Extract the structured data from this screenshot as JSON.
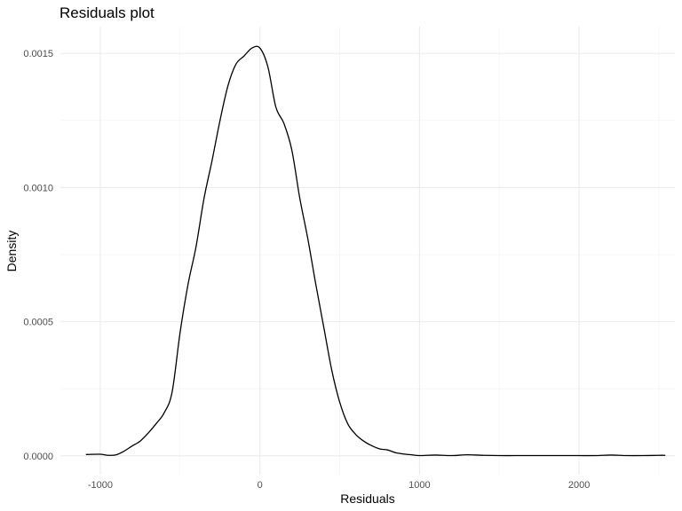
{
  "chart_data": {
    "type": "line",
    "title": "Residuals plot",
    "xlabel": "Residuals",
    "ylabel": "Density",
    "xlim": [
      -1250,
      2600
    ],
    "ylim": [
      -7e-05,
      0.0016
    ],
    "x_ticks": [
      -1000,
      0,
      1000,
      2000
    ],
    "x_tick_labels": [
      "-1000",
      "0",
      "1000",
      "2000"
    ],
    "y_ticks": [
      0.0,
      0.0005,
      0.001,
      0.0015
    ],
    "y_tick_labels": [
      "0.0000",
      "0.0005",
      "0.0010",
      "0.0015"
    ],
    "x_minor_ticks": [
      -500,
      500,
      1500,
      2500
    ],
    "y_minor_ticks": [
      0.00025,
      0.00075,
      0.00125
    ],
    "grid": true,
    "legend": "none",
    "series": [
      {
        "color": "#000000",
        "x": [
          -1090,
          -1000,
          -950,
          -900,
          -850,
          -800,
          -750,
          -700,
          -650,
          -600,
          -550,
          -500,
          -450,
          -400,
          -350,
          -300,
          -250,
          -200,
          -150,
          -100,
          -50,
          0,
          50,
          100,
          150,
          200,
          250,
          300,
          350,
          400,
          450,
          500,
          550,
          600,
          650,
          700,
          750,
          800,
          850,
          900,
          950,
          1000,
          1100,
          1200,
          1300,
          1400,
          1500,
          1600,
          1700,
          1800,
          1900,
          2000,
          2100,
          2200,
          2300,
          2400,
          2500,
          2540
        ],
        "y": [
          5e-06,
          6e-06,
          2e-06,
          4e-06,
          1.8e-05,
          3.7e-05,
          5.5e-05,
          8.5e-05,
          0.00012,
          0.00016,
          0.000238,
          0.00046,
          0.00064,
          0.00078,
          0.00096,
          0.0011,
          0.00125,
          0.00138,
          0.00146,
          0.00149,
          0.00152,
          0.00152,
          0.00145,
          0.0013,
          0.00124,
          0.00114,
          0.00096,
          0.00081,
          0.00064,
          0.00048,
          0.00032,
          0.0002,
          0.00012,
          8e-05,
          5.5e-05,
          3.8e-05,
          2.6e-05,
          2.2e-05,
          1.2e-05,
          7e-06,
          4e-06,
          1e-06,
          3e-06,
          1e-06,
          4e-06,
          2e-06,
          1e-06,
          1e-06,
          1e-06,
          1e-06,
          1e-06,
          1e-06,
          1e-06,
          3e-06,
          1e-06,
          1e-06,
          2e-06,
          2e-06
        ]
      }
    ]
  }
}
